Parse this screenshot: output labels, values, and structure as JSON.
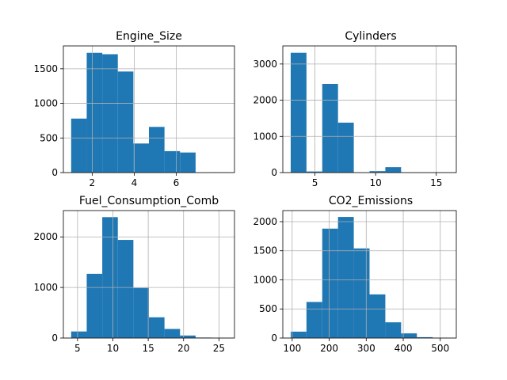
{
  "figure": {
    "background": "#ffffff",
    "bar_color": "#1f77b4",
    "grid_color": "#b0b0b0"
  },
  "chart_data": [
    {
      "type": "bar",
      "title": "Engine_Size",
      "bins": 10,
      "x_range": [
        1.0,
        8.4
      ],
      "xlim": [
        0.63,
        8.77
      ],
      "ylim": [
        0,
        1830
      ],
      "xticks": [
        2,
        4,
        6
      ],
      "yticks": [
        0,
        500,
        1000,
        1500
      ],
      "values": [
        780,
        1730,
        1710,
        1460,
        420,
        660,
        310,
        290,
        0,
        5
      ],
      "grid": true
    },
    {
      "type": "bar",
      "title": "Cylinders",
      "bins": 10,
      "x_range": [
        3,
        16
      ],
      "xlim": [
        2.35,
        16.65
      ],
      "ylim": [
        0,
        3500
      ],
      "xticks": [
        5,
        10,
        15
      ],
      "yticks": [
        0,
        1000,
        2000,
        3000
      ],
      "values": [
        3310,
        30,
        2450,
        1380,
        0,
        40,
        150,
        0,
        0,
        5
      ],
      "grid": true
    },
    {
      "type": "bar",
      "title": "Fuel_Consumption_Comb",
      "bins": 10,
      "x_range": [
        4.1,
        26.1
      ],
      "xlim": [
        3.0,
        27.2
      ],
      "ylim": [
        0,
        2520
      ],
      "xticks": [
        5,
        10,
        15,
        20,
        25
      ],
      "yticks": [
        0,
        1000,
        2000
      ],
      "values": [
        130,
        1270,
        2390,
        1940,
        990,
        410,
        180,
        50,
        10,
        5
      ],
      "grid": true
    },
    {
      "type": "bar",
      "title": "CO2_Emissions",
      "bins": 10,
      "x_range": [
        96,
        522
      ],
      "xlim": [
        74.7,
        543.3
      ],
      "ylim": [
        0,
        2190
      ],
      "xticks": [
        100,
        200,
        300,
        400,
        500
      ],
      "yticks": [
        0,
        500,
        1000,
        1500,
        2000
      ],
      "values": [
        110,
        620,
        1880,
        2080,
        1540,
        750,
        270,
        80,
        15,
        5
      ],
      "grid": true
    }
  ]
}
